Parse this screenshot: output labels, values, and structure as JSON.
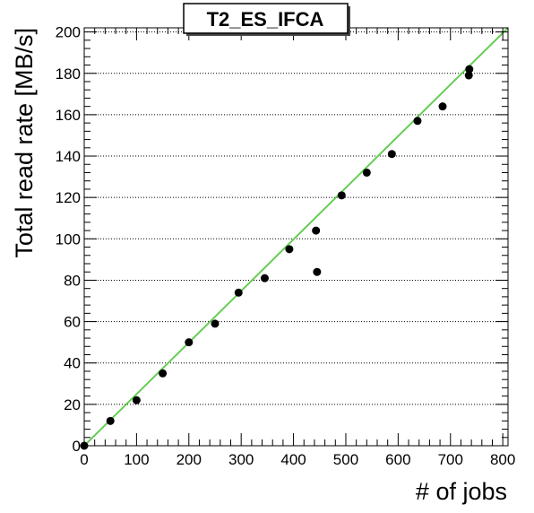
{
  "chart_data": {
    "type": "scatter",
    "title": "T2_ES_IFCA",
    "xlabel": "# of jobs",
    "ylabel": "Total read rate [MB/s]",
    "xlim": [
      0,
      810
    ],
    "ylim": [
      0,
      202
    ],
    "x_ticks": [
      0,
      100,
      200,
      300,
      400,
      500,
      600,
      700,
      800
    ],
    "y_ticks": [
      0,
      20,
      40,
      60,
      80,
      100,
      120,
      140,
      160,
      180,
      200
    ],
    "grid": {
      "x": false,
      "y": true
    },
    "marker_color": "#000000",
    "fit_color": "#66cc55",
    "points": [
      {
        "x": 0,
        "y": 0
      },
      {
        "x": 50,
        "y": 12
      },
      {
        "x": 100,
        "y": 22
      },
      {
        "x": 150,
        "y": 35
      },
      {
        "x": 200,
        "y": 50
      },
      {
        "x": 250,
        "y": 59
      },
      {
        "x": 295,
        "y": 74
      },
      {
        "x": 345,
        "y": 81
      },
      {
        "x": 392,
        "y": 95
      },
      {
        "x": 443,
        "y": 104
      },
      {
        "x": 445,
        "y": 84
      },
      {
        "x": 492,
        "y": 121
      },
      {
        "x": 540,
        "y": 132
      },
      {
        "x": 588,
        "y": 141
      },
      {
        "x": 637,
        "y": 157
      },
      {
        "x": 685,
        "y": 164
      },
      {
        "x": 735,
        "y": 179
      },
      {
        "x": 736,
        "y": 182
      }
    ],
    "fit_line": {
      "x": [
        0,
        810
      ],
      "y": [
        0,
        202
      ]
    }
  }
}
